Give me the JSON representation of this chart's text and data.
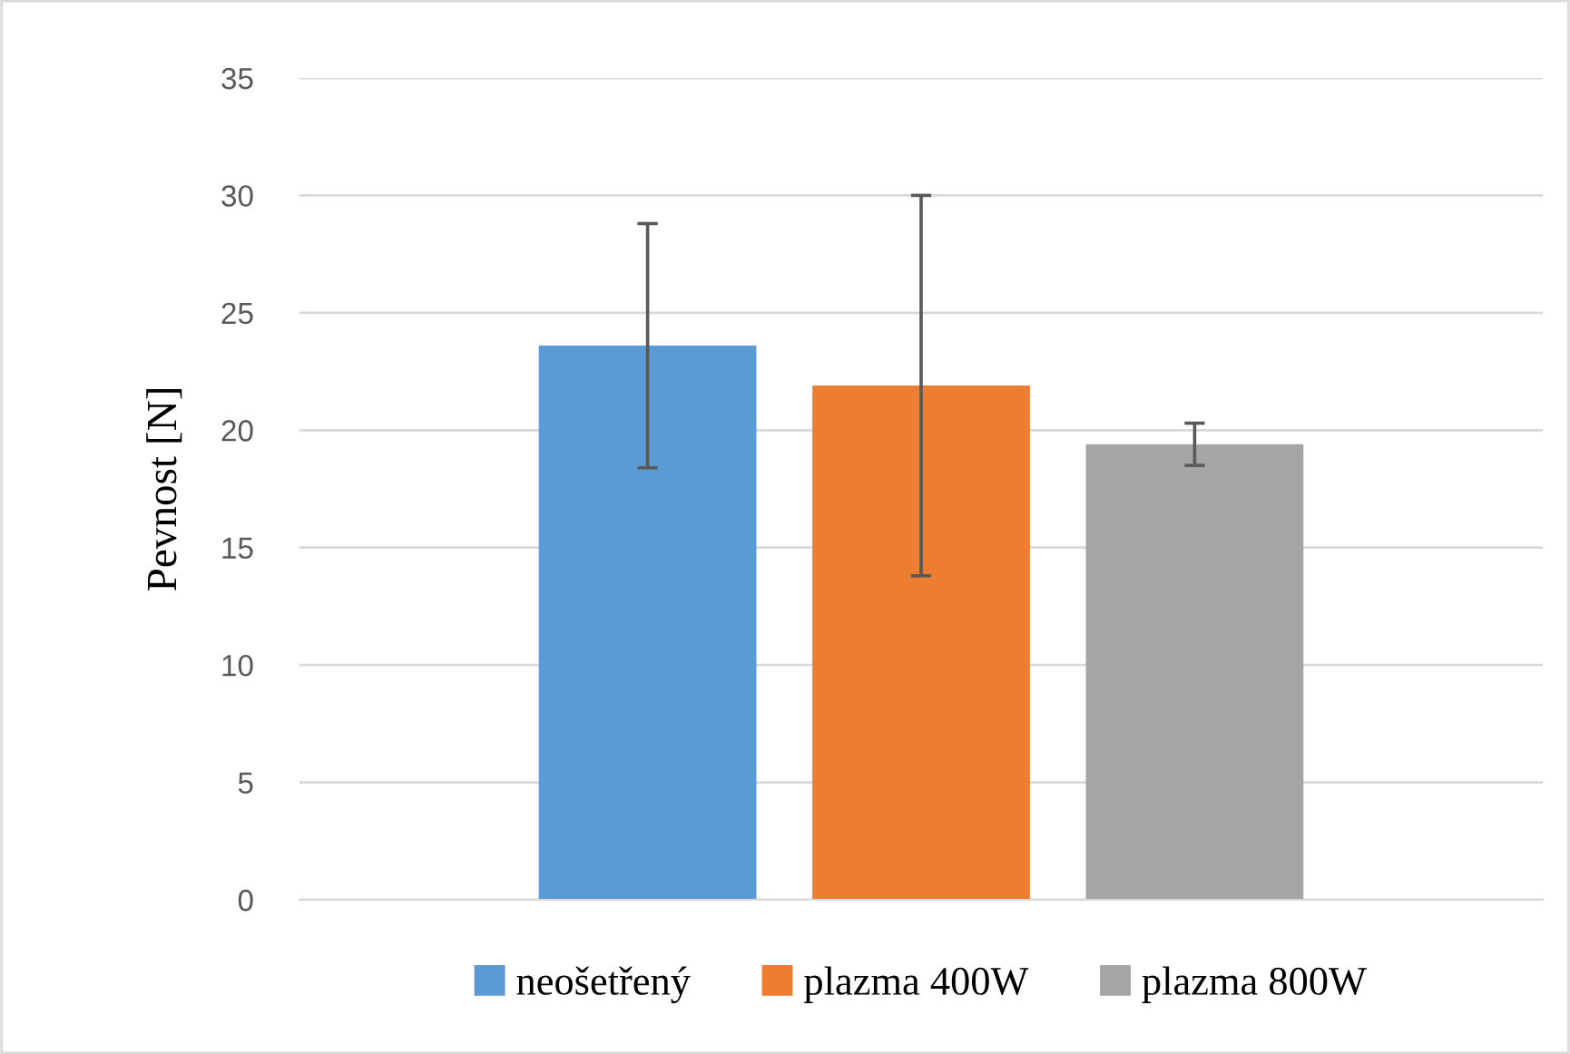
{
  "chart_data": {
    "type": "bar",
    "ylabel": "Pevnost [N]",
    "categories": [
      null
    ],
    "series": [
      {
        "name": "neošetřený",
        "color": "#5b9bd5",
        "values": [
          23.6
        ],
        "errors": [
          5.2
        ]
      },
      {
        "name": "plazma 400W",
        "color": "#ed7d31",
        "values": [
          21.9
        ],
        "errors": [
          8.1
        ]
      },
      {
        "name": "plazma 800W",
        "color": "#a5a5a5",
        "values": [
          19.4
        ],
        "errors": [
          0.9
        ]
      }
    ],
    "ylim": [
      0,
      35
    ],
    "yticks": [
      0,
      5,
      10,
      15,
      20,
      25,
      30,
      35
    ],
    "grid": "y",
    "legend": "bottom"
  }
}
